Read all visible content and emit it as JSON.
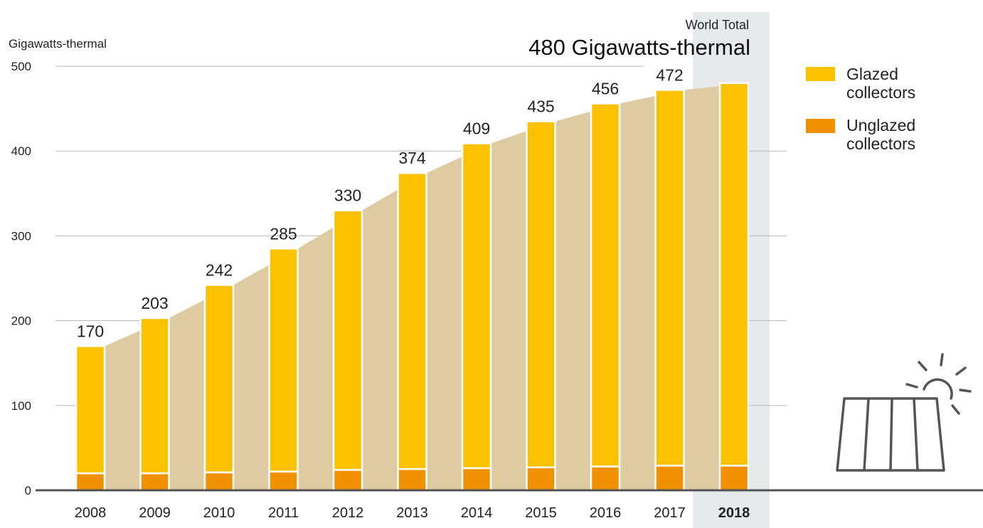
{
  "chart_data": {
    "type": "bar",
    "stacked": true,
    "ylabel": "Gigawatts-thermal",
    "ylim": [
      0,
      500
    ],
    "yticks": [
      0,
      100,
      200,
      300,
      400,
      500
    ],
    "grid": true,
    "categories": [
      "2008",
      "2009",
      "2010",
      "2011",
      "2012",
      "2013",
      "2014",
      "2015",
      "2016",
      "2017",
      "2018"
    ],
    "totals": [
      170,
      203,
      242,
      285,
      330,
      374,
      409,
      435,
      456,
      472,
      480
    ],
    "total_labels": [
      "170",
      "203",
      "242",
      "285",
      "330",
      "374",
      "409",
      "435",
      "456",
      "472"
    ],
    "series": [
      {
        "name": "Unglazed collectors",
        "values": [
          20,
          20,
          21,
          22,
          24,
          25,
          26,
          27,
          28,
          29,
          29
        ]
      },
      {
        "name": "Glazed collectors",
        "values": [
          150,
          183,
          221,
          263,
          306,
          349,
          383,
          408,
          428,
          443,
          451
        ]
      }
    ],
    "highlight_category": "2018",
    "annotation": {
      "label": "World Total",
      "value": "480 Gigawatts-thermal"
    },
    "legend": {
      "position": "top-right",
      "entries": [
        {
          "line1": "Glazed",
          "line2": "collectors",
          "color": "#fcc200"
        },
        {
          "line1": "Unglazed",
          "line2": "collectors",
          "color": "#f29100"
        }
      ]
    },
    "icon": "solar-collector-icon"
  },
  "colors": {
    "glazed": "#fcc200",
    "unglazed": "#f29100",
    "area": "#dfcba2",
    "highlight": "#e8e9eb",
    "grid": "#b8b8b8",
    "axis": "#555555",
    "icon": "#555555"
  }
}
